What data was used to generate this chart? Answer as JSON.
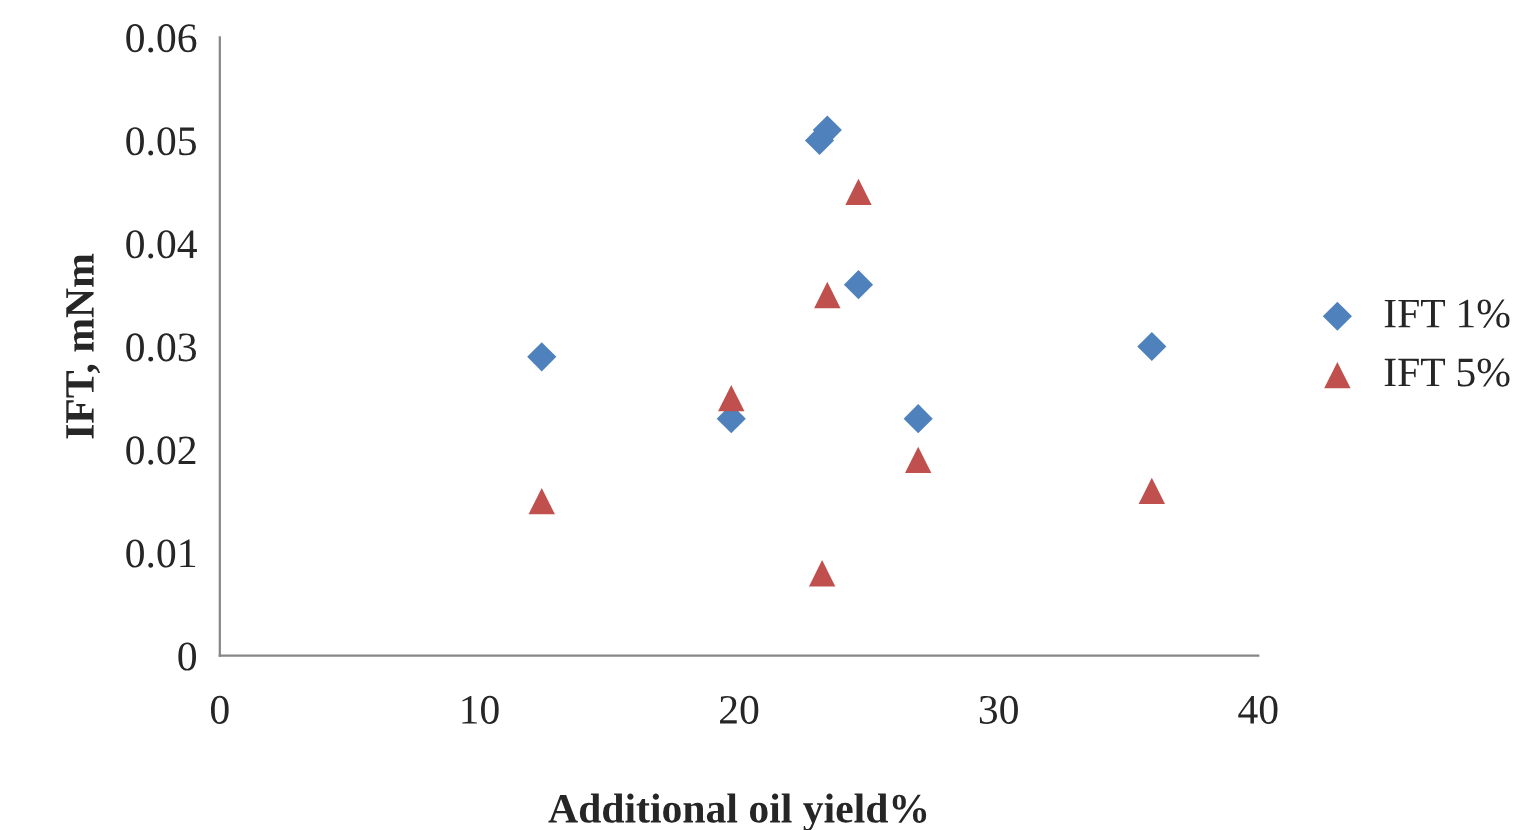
{
  "chart_data": {
    "type": "scatter",
    "xlabel": "Additional oil yield%",
    "ylabel": "IFT, mNm",
    "xlim": [
      0,
      40
    ],
    "xticks": [
      0,
      10,
      20,
      30,
      40
    ],
    "ylim": [
      0,
      0.06
    ],
    "yticks": [
      {
        "value": 0,
        "label": "0"
      },
      0.01,
      0.02,
      0.03,
      0.04,
      0.05,
      0.06
    ],
    "grid": false,
    "legend": "right",
    "series": [
      {
        "name": "IFT 1%",
        "color": "#4f81bd",
        "marker": "diamond",
        "x": [
          12.4,
          19.7,
          23.1,
          23.4,
          24.6,
          26.9,
          35.9
        ],
        "values": [
          0.029,
          0.023,
          0.05,
          0.051,
          0.036,
          0.023,
          0.03
        ]
      },
      {
        "name": "IFT 5%",
        "color": "#c0504d",
        "marker": "triangle",
        "x": [
          12.4,
          19.7,
          23.2,
          23.4,
          24.6,
          26.9,
          35.9
        ],
        "values": [
          0.015,
          0.025,
          0.008,
          0.035,
          0.045,
          0.019,
          0.016
        ]
      }
    ]
  }
}
